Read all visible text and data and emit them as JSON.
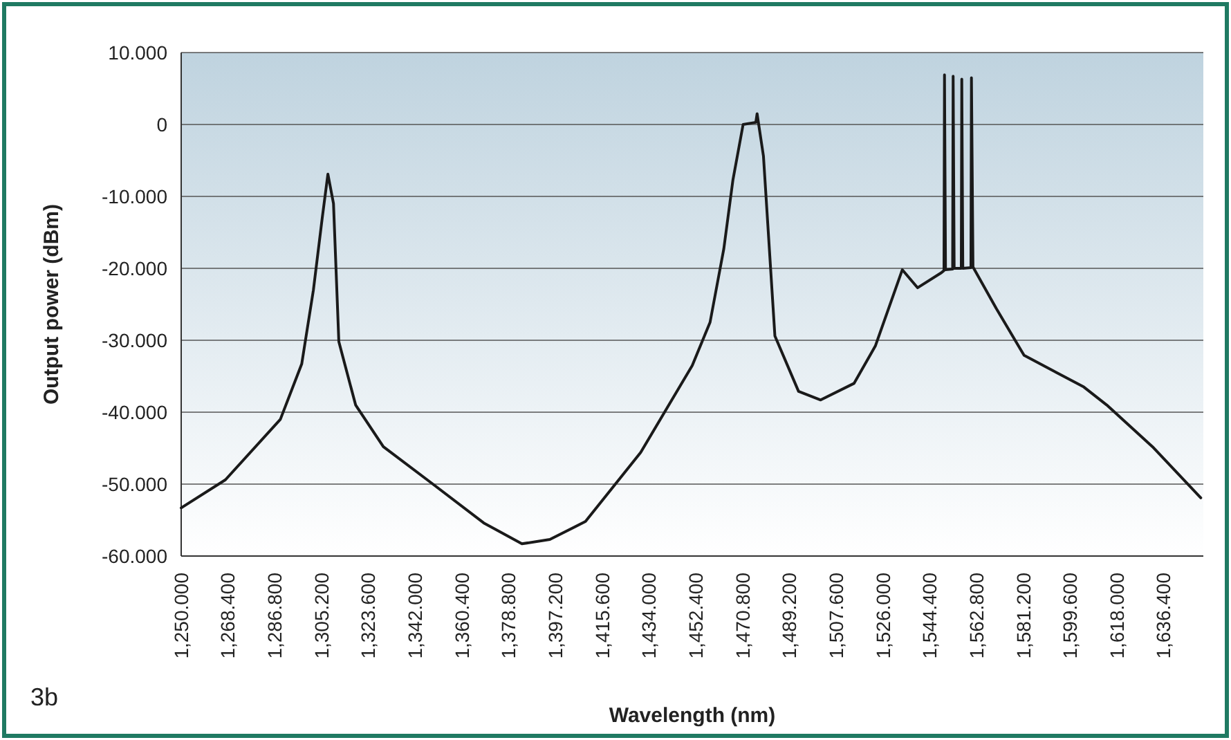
{
  "chart_data": {
    "type": "line",
    "xlabel": "Wavelength (nm)",
    "ylabel": "Output power (dBm)",
    "annotations": [
      "3b"
    ],
    "xlim": [
      1250,
      1652
    ],
    "ylim": [
      -60,
      10
    ],
    "xticks": [
      {
        "value": 1250,
        "label": "1,250.000"
      },
      {
        "value": 1268.4,
        "label": "1,268.400"
      },
      {
        "value": 1286.8,
        "label": "1,286.800"
      },
      {
        "value": 1305.2,
        "label": "1,305.200"
      },
      {
        "value": 1323.6,
        "label": "1,323.600"
      },
      {
        "value": 1342,
        "label": "1,342.000"
      },
      {
        "value": 1360.4,
        "label": "1,360.400"
      },
      {
        "value": 1378.8,
        "label": "1,378.800"
      },
      {
        "value": 1397.2,
        "label": "1,397.200"
      },
      {
        "value": 1415.6,
        "label": "1,415.600"
      },
      {
        "value": 1434,
        "label": "1,434.000"
      },
      {
        "value": 1452.4,
        "label": "1,452.400"
      },
      {
        "value": 1470.8,
        "label": "1,470.800"
      },
      {
        "value": 1489.2,
        "label": "1,489.200"
      },
      {
        "value": 1507.6,
        "label": "1,507.600"
      },
      {
        "value": 1526,
        "label": "1,526.000"
      },
      {
        "value": 1544.4,
        "label": "1,544.400"
      },
      {
        "value": 1562.8,
        "label": "1,562.800"
      },
      {
        "value": 1581.2,
        "label": "1,581.200"
      },
      {
        "value": 1599.6,
        "label": "1,599.600"
      },
      {
        "value": 1618,
        "label": "1,618.000"
      },
      {
        "value": 1636.4,
        "label": "1,636.400"
      }
    ],
    "yticks": [
      {
        "value": 10,
        "label": "10.000"
      },
      0,
      {
        "value": -10,
        "label": "-10.000"
      },
      {
        "value": -20,
        "label": "-20.000"
      },
      {
        "value": -30,
        "label": "-30.000"
      },
      {
        "value": -40,
        "label": "-40.000"
      },
      {
        "value": -50,
        "label": "-50.000"
      },
      {
        "value": -60,
        "label": "-60.000"
      }
    ],
    "grid": "y",
    "marker": "none",
    "line_style": "solid",
    "series": [
      {
        "color": "#1a1a1a",
        "x": [
          1250,
          1267.4,
          1289,
          1297.4,
          1302,
          1305.5,
          1307.7,
          1309.9,
          1312,
          1318.6,
          1329.5,
          1349,
          1369,
          1384,
          1395,
          1409,
          1430.7,
          1451,
          1458,
          1463.4,
          1467,
          1471,
          1476,
          1476.5,
          1477,
          1479,
          1483.5,
          1492.8,
          1501.5,
          1514.6,
          1523,
          1533.6,
          1539.6,
          1549,
          1550,
          1550.2,
          1550.6,
          1553.4,
          1553.6,
          1554,
          1556.8,
          1557,
          1557.4,
          1560.6,
          1560.8,
          1561.4,
          1570.6,
          1581.5,
          1605,
          1614,
          1632,
          1651
        ],
        "values": [
          -53.3,
          -49.4,
          -41,
          -33.3,
          -23,
          -12.9,
          -6.9,
          -11,
          -30.2,
          -39,
          -44.8,
          -50,
          -55.4,
          -58.3,
          -57.7,
          -55.2,
          -45.6,
          -33.5,
          -27.5,
          -17.3,
          -7.7,
          0,
          0.3,
          1.5,
          0.3,
          -4.4,
          -29.4,
          -37.1,
          -38.3,
          -36,
          -30.8,
          -20.2,
          -22.7,
          -20.6,
          -20.3,
          6.9,
          -20.2,
          -20.1,
          6.7,
          -20,
          -20,
          6.3,
          -20,
          -19.9,
          6.5,
          -19.8,
          -25.6,
          -32.1,
          -36.5,
          -39,
          -44.8,
          -51.9
        ]
      }
    ]
  }
}
